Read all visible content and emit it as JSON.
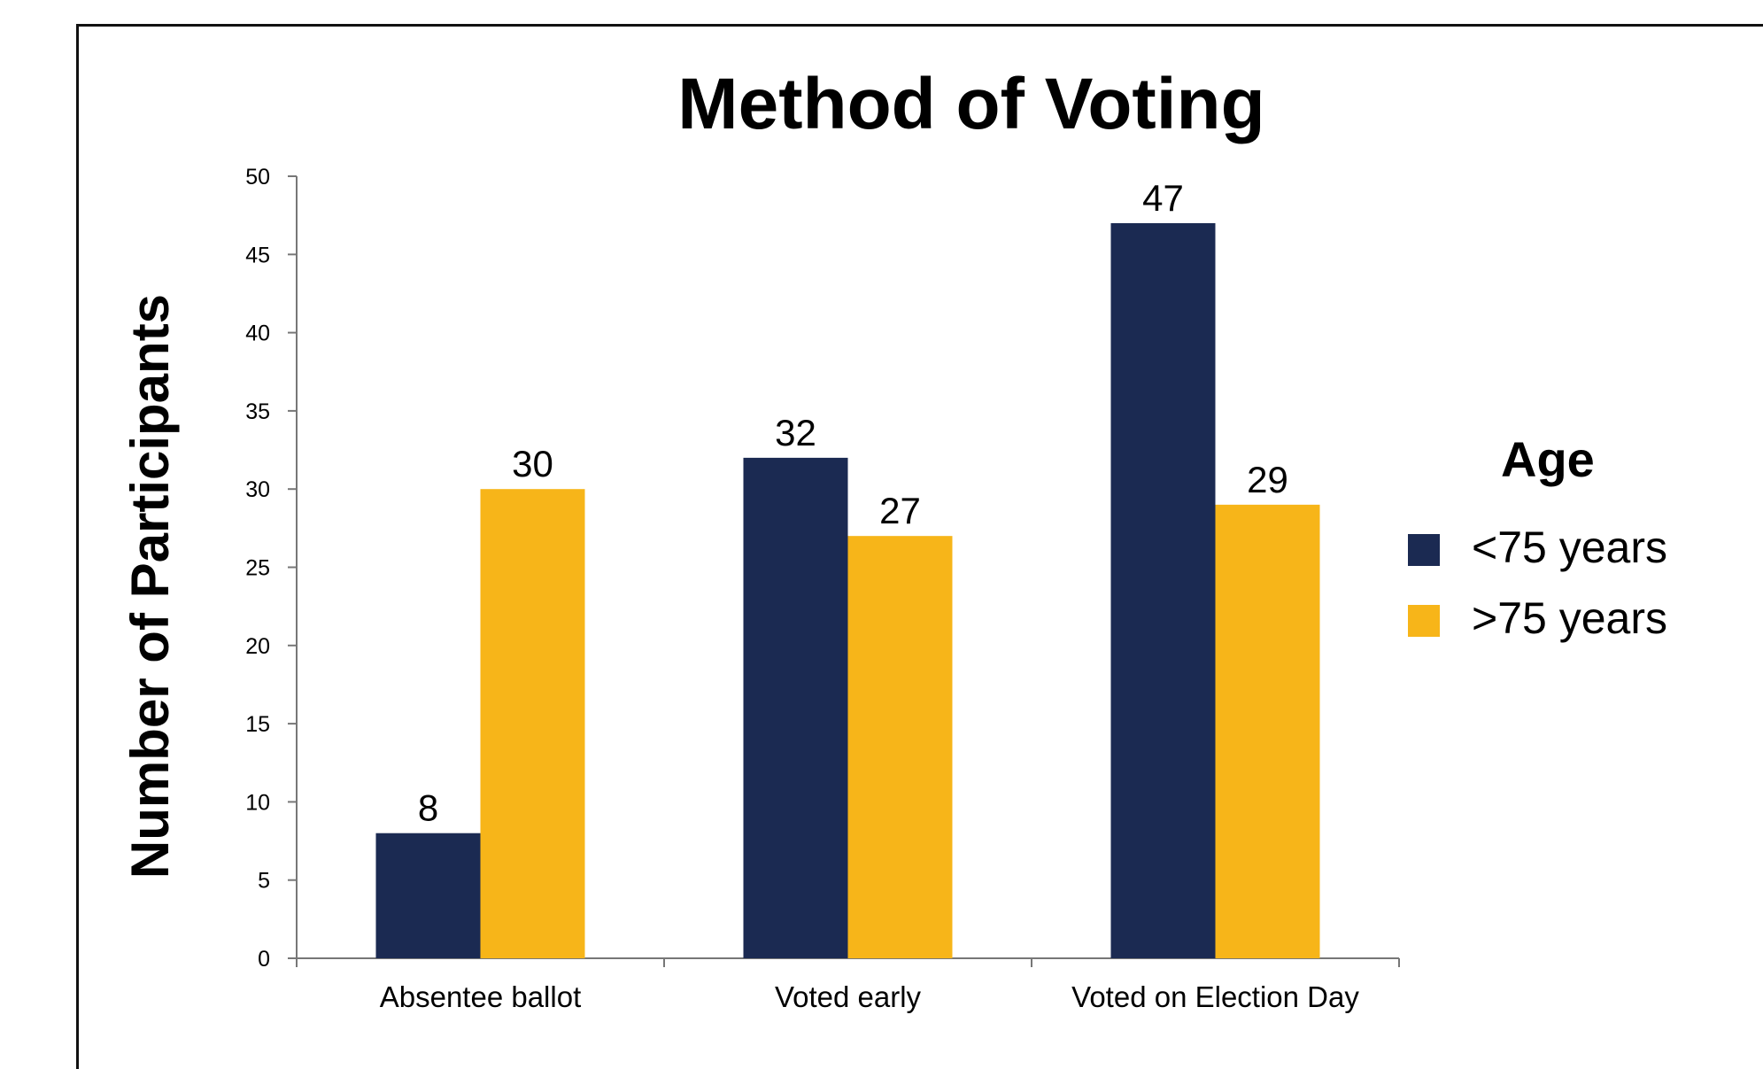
{
  "chart_data": {
    "type": "bar",
    "title": "Method of Voting",
    "xlabel": "",
    "ylabel": "Number of Participants",
    "ylim": [
      0,
      50
    ],
    "yticks": [
      0,
      5,
      10,
      15,
      20,
      25,
      30,
      35,
      40,
      45,
      50
    ],
    "categories": [
      "Absentee ballot",
      "Voted early",
      "Voted on Election Day"
    ],
    "series": [
      {
        "name": "<75 years",
        "color": "#1b2a52",
        "values": [
          8,
          32,
          47
        ]
      },
      {
        "name": ">75 years",
        "color": "#f7b519",
        "values": [
          30,
          27,
          29
        ]
      }
    ],
    "legend": {
      "title": "Age",
      "position": "right"
    },
    "grid": false
  }
}
